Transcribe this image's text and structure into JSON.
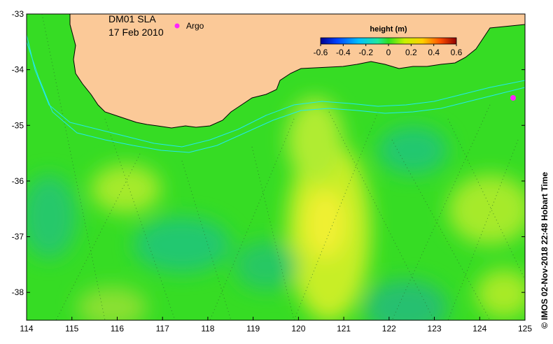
{
  "map": {
    "title_line1": "DM01 SLA",
    "title_line2": "17 Feb 2010",
    "legend_argo_label": "Argo",
    "credit": "© IMOS 02-Nov-2018 22:48 Hobart Time",
    "colorbar": {
      "title": "height (m)",
      "ticks": [
        "-0.6",
        "-0.4",
        "-0.2",
        "0",
        "0.2",
        "0.4",
        "0.6"
      ],
      "min": -0.6,
      "max": 0.6
    },
    "x_ticks": [
      "114",
      "115",
      "116",
      "117",
      "118",
      "119",
      "120",
      "121",
      "122",
      "123",
      "124",
      "125"
    ],
    "y_ticks": [
      "-33",
      "-34",
      "-35",
      "-36",
      "-37",
      "-38"
    ],
    "lon_range": [
      114,
      125
    ],
    "lat_range": [
      -38.5,
      -33
    ],
    "colors": {
      "land": "#fbc998",
      "ocean_base": "#33dd22",
      "bathymetry_contour": "#22e8f0",
      "argo_marker": "#ff22ff"
    },
    "argo_floats": [
      {
        "lon": 124.8,
        "lat": -34.5
      }
    ]
  }
}
